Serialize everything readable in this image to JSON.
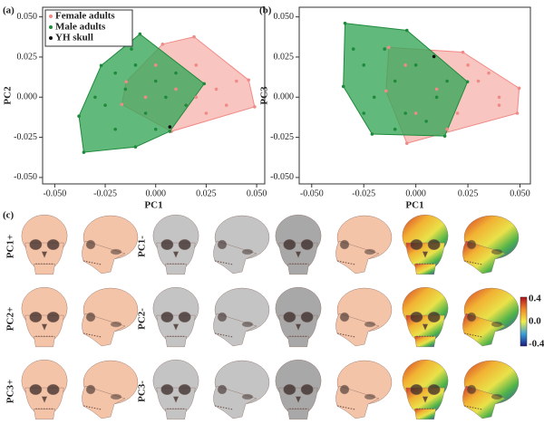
{
  "chart_data": [
    {
      "type": "scatter",
      "panel_label": "(a)",
      "xlabel": "PC1",
      "ylabel": "PC2",
      "xlim": [
        -0.056,
        0.054
      ],
      "ylim": [
        -0.054,
        0.056
      ],
      "xticks": [
        {
          "value": -0.05,
          "label": "-0.050"
        },
        -0.025,
        {
          "value": 0,
          "label": "0.000"
        },
        0.025,
        {
          "value": 0.05,
          "label": "0.050"
        }
      ],
      "yticks": [
        {
          "value": -0.05,
          "label": "-0.050"
        },
        -0.025,
        {
          "value": 0,
          "label": "0.000"
        },
        0.025,
        {
          "value": 0.05,
          "label": "0.050"
        }
      ],
      "legend": "upper left",
      "hull": true,
      "series": [
        {
          "name": "Female adults",
          "color": "#f08a86",
          "hull_color": "#f7b7b2",
          "x": [
            0.019,
            0.046,
            0.049,
            0.0078,
            -0.0168,
            -0.0146,
            0.0034,
            0.02,
            0.03,
            0.01,
            0.035,
            0.0,
            0.025,
            0.04,
            0.015,
            -0.005,
            0.02
          ],
          "values": [
            0.0376,
            0.0107,
            -0.006,
            -0.0213,
            -0.0045,
            0.0096,
            0.033,
            0.02,
            0.005,
            0.005,
            -0.005,
            0.02,
            -0.01,
            0.01,
            -0.005,
            0.0,
            0.0
          ]
        },
        {
          "name": "Male adults",
          "color": "#1f8a3c",
          "hull_color": "#3aa85a",
          "x": [
            -0.0078,
            0.024,
            0.007,
            -0.01,
            -0.0356,
            -0.038,
            -0.027,
            -0.02,
            -0.015,
            -0.025,
            -0.01,
            0.0,
            -0.005,
            -0.02,
            0.005,
            0.01,
            -0.03,
            0.0,
            0.015,
            -0.012
          ],
          "values": [
            0.0393,
            0.0084,
            -0.0213,
            -0.031,
            -0.0343,
            -0.0118,
            0.0197,
            0.015,
            0.005,
            -0.005,
            0.02,
            0.01,
            -0.01,
            -0.02,
            0.0,
            0.015,
            0.0,
            -0.02,
            -0.005,
            0.03
          ]
        },
        {
          "name": "YH skull",
          "color": "#111111",
          "x": [
            0.007
          ],
          "values": [
            -0.0185
          ]
        }
      ]
    },
    {
      "type": "scatter",
      "panel_label": "(b)",
      "xlabel": "PC1",
      "ylabel": "PC3",
      "xlim": [
        -0.056,
        0.055
      ],
      "ylim": [
        -0.054,
        0.056
      ],
      "xticks": [
        {
          "value": -0.05,
          "label": "-0.050"
        },
        -0.025,
        {
          "value": 0,
          "label": "0.000"
        },
        0.025,
        {
          "value": 0.05,
          "label": "0.050"
        }
      ],
      "yticks": [
        {
          "value": -0.05,
          "label": "-0.050"
        },
        -0.025,
        {
          "value": 0,
          "label": "0.000"
        },
        0.025,
        {
          "value": 0.05,
          "label": "0.050"
        }
      ],
      "hull": true,
      "series": [
        {
          "color": "#f08a86",
          "hull_color": "#f7b7b2",
          "x": [
            -0.013,
            0.0226,
            0.0496,
            0.0487,
            -0.0043,
            -0.0143,
            0.03,
            0.04,
            0.02,
            0.035,
            0.01,
            0.0,
            0.025,
            0.04,
            0.015,
            -0.005
          ],
          "values": [
            0.031,
            0.028,
            0.0056,
            -0.01,
            -0.0287,
            0.0039,
            0.01,
            0.0,
            -0.01,
            0.015,
            0.005,
            -0.01,
            0.02,
            -0.005,
            -0.02,
            0.02
          ]
        },
        {
          "color": "#1f8a3c",
          "hull_color": "#3aa85a",
          "x": [
            -0.034,
            -0.0043,
            0.0248,
            0.0139,
            -0.021,
            -0.0348,
            -0.025,
            -0.015,
            -0.02,
            -0.01,
            0.0,
            0.01,
            -0.005,
            -0.025,
            0.005,
            0.015,
            -0.03,
            -0.01
          ],
          "values": [
            0.046,
            0.0416,
            0.0096,
            -0.0242,
            -0.023,
            0.0067,
            0.02,
            0.03,
            0.0,
            0.01,
            0.02,
            0.0,
            -0.01,
            -0.01,
            -0.015,
            0.01,
            0.03,
            -0.02
          ]
        },
        {
          "color": "#111111",
          "x": [
            0.0087
          ],
          "values": [
            0.0253
          ]
        }
      ]
    }
  ],
  "panel_c": {
    "label": "(c)",
    "rows": [
      {
        "positive": "PC1+",
        "negative": "PC1-"
      },
      {
        "positive": "PC2+",
        "negative": "PC2-"
      },
      {
        "positive": "PC3+",
        "negative": "PC3-"
      }
    ],
    "colorbar_labels": [
      "0.4",
      "0.0",
      "-0.4"
    ]
  }
}
